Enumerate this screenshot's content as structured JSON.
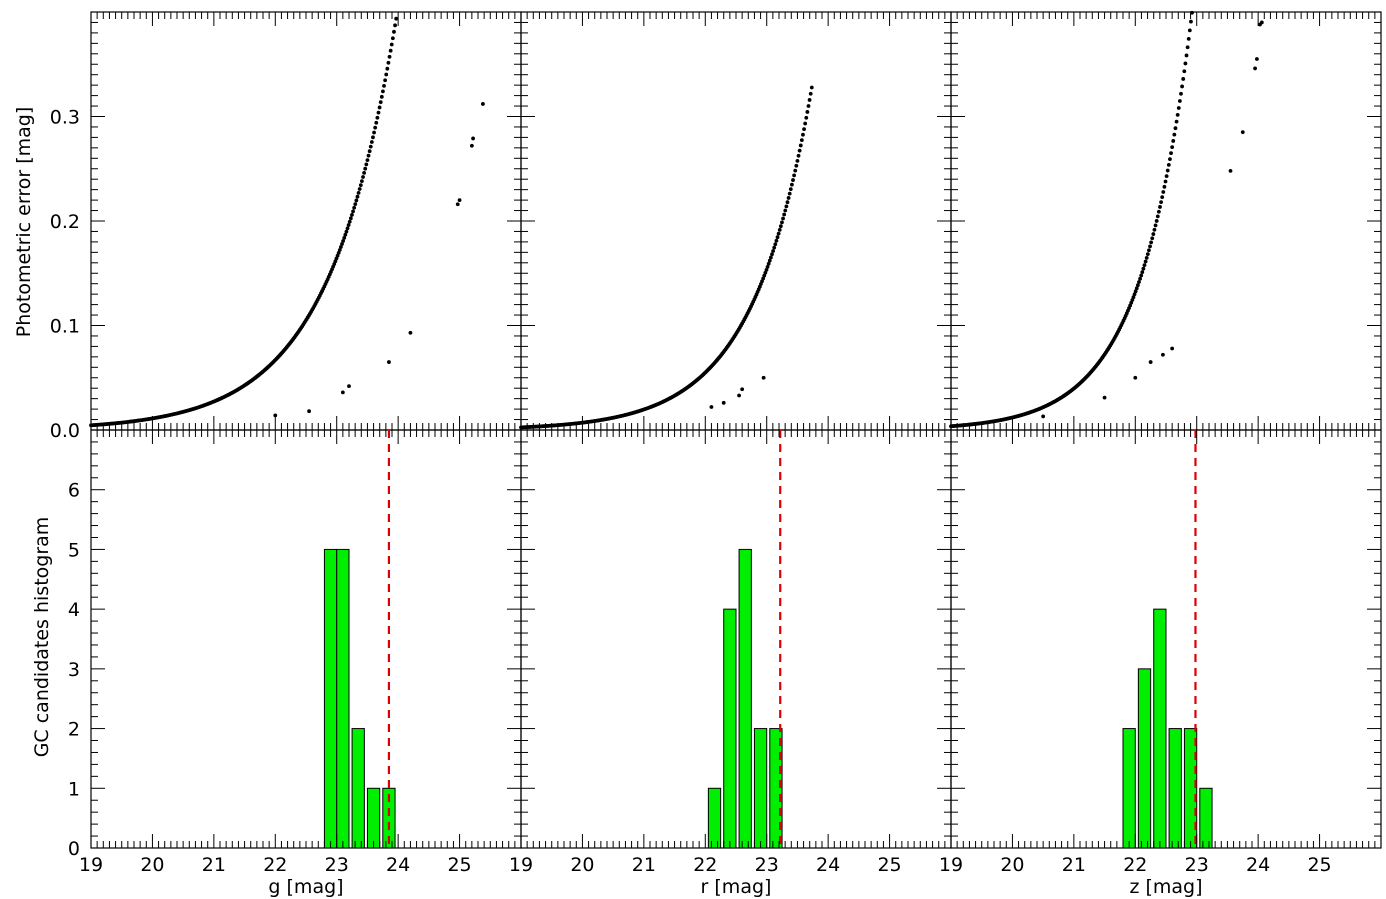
{
  "chart_data": {
    "type": "scatter+histogram grid",
    "layout": "2 rows x 3 columns, shared axes",
    "x_axis": {
      "range": [
        19,
        26
      ],
      "tick_labels": [
        "19",
        "20",
        "21",
        "22",
        "23",
        "24",
        "25"
      ],
      "labels": [
        "g [mag]",
        "r [mag]",
        "z [mag]"
      ]
    },
    "top_row": {
      "type": "scatter",
      "ylabel": "Photometric error [mag]",
      "ylim": [
        0,
        0.4
      ],
      "ytick_labels": [
        "0.0",
        "0.1",
        "0.2",
        "0.3"
      ],
      "point_color": "#000000",
      "panels": [
        {
          "band": "g",
          "curve": {
            "x_start": 19.0,
            "x_end": 24.7,
            "a": 0.0045,
            "x0": 19.0,
            "b": 0.9
          },
          "extra_points": [
            [
              22.0,
              0.014
            ],
            [
              22.55,
              0.018
            ],
            [
              23.1,
              0.036
            ],
            [
              23.2,
              0.042
            ],
            [
              23.85,
              0.065
            ],
            [
              24.2,
              0.093
            ],
            [
              24.97,
              0.216
            ],
            [
              25.0,
              0.22
            ],
            [
              25.2,
              0.272
            ],
            [
              25.22,
              0.279
            ],
            [
              25.38,
              0.312
            ]
          ]
        },
        {
          "band": "r",
          "curve": {
            "x_start": 19.0,
            "x_end": 23.75,
            "a": 0.0025,
            "x0": 19.0,
            "b": 1.03
          },
          "extra_points": [
            [
              22.1,
              0.022
            ],
            [
              22.3,
              0.026
            ],
            [
              22.55,
              0.033
            ],
            [
              22.6,
              0.039
            ],
            [
              22.95,
              0.05
            ]
          ]
        },
        {
          "band": "z",
          "curve": {
            "x_start": 19.0,
            "x_end": 23.55,
            "a": 0.0036,
            "x0": 19.0,
            "b": 1.2
          },
          "extra_points": [
            [
              20.5,
              0.013
            ],
            [
              21.5,
              0.031
            ],
            [
              22.0,
              0.05
            ],
            [
              22.25,
              0.065
            ],
            [
              22.45,
              0.072
            ],
            [
              22.6,
              0.078
            ],
            [
              23.55,
              0.248
            ],
            [
              23.75,
              0.285
            ],
            [
              23.95,
              0.346
            ],
            [
              23.98,
              0.355
            ],
            [
              24.03,
              0.388
            ],
            [
              24.06,
              0.39
            ]
          ]
        }
      ]
    },
    "bottom_row": {
      "type": "bar",
      "ylabel": "GC candidates histogram",
      "ylim": [
        0,
        7
      ],
      "ytick_labels": [
        "0",
        "1",
        "2",
        "3",
        "4",
        "5",
        "6"
      ],
      "bar_color": "#00ee00",
      "bar_edge": "#000000",
      "threshold_color": "#dd0000",
      "panels": [
        {
          "band": "g",
          "bins": [
            [
              22.8,
              23.0,
              5
            ],
            [
              23.0,
              23.2,
              5
            ],
            [
              23.25,
              23.45,
              2
            ],
            [
              23.5,
              23.7,
              1
            ],
            [
              23.75,
              23.95,
              1
            ]
          ],
          "threshold": 23.85
        },
        {
          "band": "r",
          "bins": [
            [
              22.05,
              22.25,
              1
            ],
            [
              22.3,
              22.5,
              4
            ],
            [
              22.55,
              22.75,
              5
            ],
            [
              22.8,
              23.0,
              2
            ],
            [
              23.05,
              23.25,
              2
            ]
          ],
          "threshold": 23.22
        },
        {
          "band": "z",
          "bins": [
            [
              21.8,
              22.0,
              2
            ],
            [
              22.05,
              22.25,
              3
            ],
            [
              22.3,
              22.5,
              4
            ],
            [
              22.55,
              22.75,
              2
            ],
            [
              22.8,
              23.0,
              2
            ],
            [
              23.05,
              23.25,
              1
            ]
          ],
          "threshold": 22.98
        }
      ]
    }
  }
}
